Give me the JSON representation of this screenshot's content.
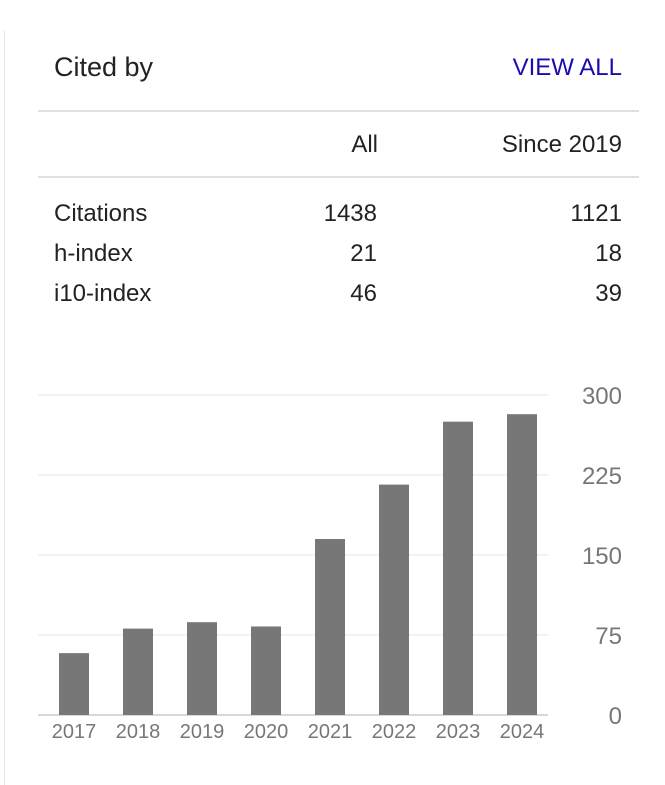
{
  "header": {
    "title": "Cited by",
    "view_all": "VIEW ALL"
  },
  "table": {
    "columns": [
      "All",
      "Since 2019"
    ],
    "rows": [
      {
        "label": "Citations",
        "all": "1438",
        "since": "1121"
      },
      {
        "label": "h-index",
        "all": "21",
        "since": "18"
      },
      {
        "label": "i10-index",
        "all": "46",
        "since": "39"
      }
    ]
  },
  "chart_data": {
    "type": "bar",
    "categories": [
      "2017",
      "2018",
      "2019",
      "2020",
      "2021",
      "2022",
      "2023",
      "2024"
    ],
    "values": [
      58,
      81,
      87,
      83,
      165,
      216,
      275,
      282
    ],
    "yticks": [
      "0",
      "75",
      "150",
      "225",
      "300"
    ],
    "ylim": [
      0,
      300
    ],
    "grid": true,
    "bar_color": "#777777"
  },
  "colors": {
    "link": "#1a0dab",
    "divider": "#e0e0e0",
    "bar": "#777777",
    "tick": "#777777"
  }
}
